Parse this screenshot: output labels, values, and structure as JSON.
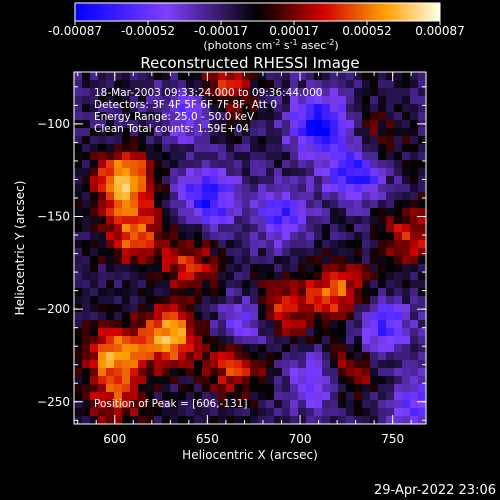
{
  "colorbar": {
    "ticks": [
      "-0.00087",
      "-0.00052",
      "-0.00017",
      "0.00017",
      "0.00052",
      "0.00087"
    ],
    "unit_text": "(photons cm",
    "unit_sup1": "-2",
    "unit_mid": " s",
    "unit_sup2": "-1",
    "unit_end": " asec",
    "unit_sup3": "-2",
    "unit_close": ")"
  },
  "overlay": {
    "time_range": "18-Mar-2003 09:33:24.000 to 09:36:44.000",
    "detectors": "Detectors: 3F 4F 5F 6F 7F 8F, Att 0",
    "energy": "Energy Range: 25.0 - 50.0 keV",
    "clean": "Clean     Total counts: 1.59E+04",
    "peak": "Position of Peak = [606,-131]"
  },
  "footer": {
    "timestamp": "29-Apr-2022 23:06"
  },
  "chart_data": {
    "type": "heatmap",
    "title": "Reconstructed RHESSI Image",
    "xlabel": "Heliocentric X (arcsec)",
    "ylabel": "Heliocentric Y (arcsec)",
    "xlim": [
      578,
      768
    ],
    "ylim": [
      -262,
      -72
    ],
    "x_ticks": [
      {
        "value": 600,
        "label": "600"
      },
      {
        "value": 650,
        "label": "650"
      },
      {
        "value": 700,
        "label": "700"
      },
      {
        "value": 750,
        "label": "750"
      }
    ],
    "y_ticks": [
      {
        "value": -100,
        "label": "−100"
      },
      {
        "value": -150,
        "label": "−150"
      },
      {
        "value": -200,
        "label": "−200"
      },
      {
        "value": -250,
        "label": "−250"
      }
    ],
    "color_range": [
      -0.00087,
      0.00087
    ],
    "colormap": [
      "#0000ff",
      "#7f3fff",
      "#000000",
      "#d20000",
      "#ffa000",
      "#ffffe6"
    ],
    "sources": [
      {
        "x": 606,
        "y": -131,
        "value": 0.00087
      },
      {
        "x": 610,
        "y": -160,
        "value": 0.0006
      },
      {
        "x": 630,
        "y": -215,
        "value": 0.0008
      },
      {
        "x": 600,
        "y": -225,
        "value": 0.0007
      },
      {
        "x": 640,
        "y": -175,
        "value": 0.00045
      },
      {
        "x": 665,
        "y": -230,
        "value": 0.00055
      },
      {
        "x": 690,
        "y": -200,
        "value": 0.0005
      },
      {
        "x": 720,
        "y": -190,
        "value": 0.0006
      },
      {
        "x": 725,
        "y": -235,
        "value": 0.0005
      },
      {
        "x": 760,
        "y": -160,
        "value": 0.00045
      },
      {
        "x": 660,
        "y": -80,
        "value": 0.00045
      },
      {
        "x": 600,
        "y": -250,
        "value": 0.0004
      },
      {
        "x": 740,
        "y": -110,
        "value": 0.0003
      },
      {
        "x": 710,
        "y": -100,
        "value": -0.00075
      },
      {
        "x": 730,
        "y": -125,
        "value": -0.0007
      },
      {
        "x": 650,
        "y": -140,
        "value": -0.00065
      },
      {
        "x": 690,
        "y": -150,
        "value": -0.0005
      },
      {
        "x": 670,
        "y": -210,
        "value": -0.0005
      },
      {
        "x": 710,
        "y": -240,
        "value": -0.00055
      },
      {
        "x": 745,
        "y": -210,
        "value": -0.0005
      },
      {
        "x": 640,
        "y": -95,
        "value": -0.0004
      },
      {
        "x": 760,
        "y": -250,
        "value": -0.0004
      }
    ]
  }
}
